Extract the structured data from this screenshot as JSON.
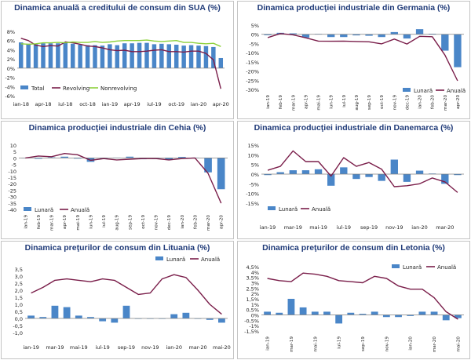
{
  "colors": {
    "bar": "#4a86c8",
    "line": "#7a1e4a",
    "line_green": "#8ed13c",
    "title": "#1f3a78",
    "zero": "#808080",
    "text": "#222222"
  },
  "chart_data": [
    {
      "id": "sua",
      "type": "bar+line",
      "title": "Dinamica anuală a creditului de consum din SUA (%)",
      "ylim": [
        -6,
        8
      ],
      "yticks": [
        -6,
        -4,
        -2,
        0,
        2,
        4,
        6,
        8
      ],
      "ytick_labels": [
        "-6%",
        "-4%",
        "-2%",
        "0%",
        "2%",
        "4%",
        "6%",
        "8%"
      ],
      "xlabels": [
        "ian-18",
        "apr-18",
        "iul-18",
        "oct-18",
        "ian-19",
        "apr-19",
        "iul-19",
        "oct-19",
        "ian-20",
        "apr-20"
      ],
      "xlabel_idx": [
        0,
        3,
        6,
        9,
        12,
        15,
        18,
        21,
        24,
        27
      ],
      "bar_series": {
        "name": "Total",
        "values": [
          5.6,
          5.3,
          5.2,
          5.4,
          5.4,
          5.4,
          5.5,
          5.3,
          5.1,
          5.0,
          5.0,
          4.9,
          5.2,
          5.0,
          5.4,
          5.4,
          5.5,
          5.5,
          5.2,
          5.3,
          5.2,
          5.1,
          4.9,
          5.0,
          4.9,
          4.8,
          4.6,
          2.2
        ]
      },
      "line_series": [
        {
          "name": "Revolving",
          "color_key": "line",
          "values": [
            6.5,
            6.0,
            5.0,
            4.7,
            4.9,
            4.8,
            5.7,
            5.5,
            5.2,
            4.8,
            4.7,
            4.4,
            4.0,
            3.8,
            3.9,
            3.6,
            3.6,
            3.7,
            3.9,
            4.0,
            3.6,
            3.6,
            3.5,
            3.7,
            3.7,
            3.2,
            1.8,
            -4.5
          ]
        },
        {
          "name": "Nonrevolving",
          "color_key": "line_green",
          "values": [
            5.3,
            5.2,
            5.3,
            5.5,
            5.5,
            5.6,
            5.5,
            5.7,
            5.6,
            5.6,
            5.8,
            5.6,
            5.7,
            5.9,
            6.0,
            6.0,
            6.0,
            6.1,
            5.9,
            5.8,
            5.9,
            6.0,
            5.6,
            5.6,
            5.4,
            5.3,
            5.4,
            4.7
          ]
        }
      ],
      "legend": [
        "Total",
        "Revolving",
        "Nonrevolving"
      ],
      "legend_position": "bottom"
    },
    {
      "id": "germania",
      "type": "bar+line",
      "title": "Dinamica producţiei industriale din Germania (%)",
      "ylim": [
        -30,
        5
      ],
      "yticks": [
        -30,
        -25,
        -20,
        -15,
        -10,
        -5,
        0,
        5
      ],
      "ytick_labels": [
        "-30%",
        "-25%",
        "-20%",
        "-15%",
        "-10%",
        "-5%",
        "0%",
        "5%"
      ],
      "xlabels": [
        "ian-19",
        "feb-19",
        "mar-19",
        "apr-19",
        "mai-19",
        "iun-19",
        "iul-19",
        "aug-19",
        "sep-19",
        "oct-19",
        "nov-19",
        "dec-19",
        "ian-20",
        "feb-20",
        "mar-20",
        "apr-20"
      ],
      "xlabel_idx": [
        0,
        1,
        2,
        3,
        4,
        5,
        6,
        7,
        8,
        9,
        10,
        11,
        12,
        13,
        14,
        15
      ],
      "bar_series": {
        "name": "Lunară",
        "values": [
          -0.5,
          0.8,
          0.5,
          -1.8,
          0.2,
          -1.5,
          -1.5,
          -0.6,
          -0.8,
          -1.5,
          1.2,
          -2.3,
          2.8,
          0.3,
          -8.9,
          -17.9
        ]
      },
      "line_series": [
        {
          "name": "Anuală",
          "color_key": "line",
          "values": [
            -1.8,
            0.4,
            -0.3,
            -1.9,
            -3.7,
            -3.8,
            -3.7,
            -3.9,
            -4.1,
            -5.2,
            -2.6,
            -5.3,
            -1.1,
            -1.3,
            -11.3,
            -25.3
          ]
        }
      ],
      "legend": [
        "Lunară",
        "Anuală"
      ],
      "legend_position": "bottom-right"
    },
    {
      "id": "cehia",
      "type": "bar+line",
      "title": "Dinamica producţiei industriale din Cehia (%)",
      "ylim": [
        -40,
        10
      ],
      "yticks": [
        -40,
        -35,
        -30,
        -25,
        -20,
        -15,
        -10,
        -5,
        0,
        5,
        10
      ],
      "ytick_labels": [
        "-40",
        "-35",
        "-30",
        "-25",
        "-20",
        "-15",
        "-10",
        "-5",
        "0",
        "5",
        "10"
      ],
      "xlabels": [
        "ian-19",
        "feb-19",
        "mar-19",
        "apr-19",
        "mai-19",
        "iun-19",
        "iul-19",
        "aug-19",
        "sep-19",
        "oct-19",
        "nov-19",
        "dec-19",
        "ian-20",
        "feb-20",
        "mar-20",
        "apr-20"
      ],
      "xlabel_idx": [
        0,
        1,
        2,
        3,
        4,
        5,
        6,
        7,
        8,
        9,
        10,
        11,
        12,
        13,
        14,
        15
      ],
      "bar_series": {
        "name": "Lunară",
        "values": [
          0.2,
          -0.6,
          0.5,
          1.0,
          -0.5,
          -3.0,
          -0.4,
          0.3,
          1.0,
          -1.0,
          -0.8,
          -1.5,
          0.8,
          0.3,
          -11.2,
          -24.3
        ]
      },
      "line_series": [
        {
          "name": "Anuală",
          "color_key": "line",
          "values": [
            0.0,
            1.5,
            1.0,
            3.5,
            2.5,
            -1.8,
            -0.5,
            -1.5,
            -1.0,
            -0.5,
            -0.5,
            -1.5,
            -0.5,
            0.0,
            -12.0,
            -35.2
          ]
        }
      ],
      "legend": [
        "Lunară",
        "Anuală"
      ],
      "legend_position": "bottom-left"
    },
    {
      "id": "danemarca",
      "type": "bar+line",
      "title": "Dinamica producţiei industriale din Danemarca (%)",
      "ylim": [
        -15,
        15
      ],
      "yticks": [
        -15,
        -10,
        -5,
        0,
        5,
        10,
        15
      ],
      "ytick_labels": [
        "-15%",
        "-10%",
        "-5%",
        "0%",
        "5%",
        "10%",
        "15%"
      ],
      "xlabels": [
        "ian-19",
        "mar-19",
        "mai-19",
        "iul-19",
        "sep-19",
        "nov-19",
        "ian-20",
        "mar-20"
      ],
      "xlabel_idx": [
        0,
        2,
        4,
        6,
        8,
        10,
        12,
        14
      ],
      "bar_series": {
        "name": "Lunară",
        "values": [
          -0.5,
          1.0,
          2.0,
          2.0,
          2.5,
          -6.0,
          3.5,
          -2.5,
          -1.5,
          -3.5,
          7.5,
          -4.0,
          1.8,
          0.3,
          -5.0,
          -0.5
        ]
      },
      "line_series": [
        {
          "name": "Anuală",
          "color_key": "line",
          "values": [
            2.0,
            4.0,
            12.0,
            6.5,
            6.5,
            -1.0,
            8.5,
            4.0,
            6.0,
            2.5,
            -6.5,
            -6.0,
            -5.0,
            -2.0,
            -4.0,
            -9.5
          ]
        }
      ],
      "legend": [
        "Lunară",
        "Anuală"
      ],
      "legend_position": "bottom"
    },
    {
      "id": "lituania",
      "type": "bar+line",
      "title": "Dinamica preţurilor de consum din Lituania (%)",
      "ylim": [
        -1.0,
        3.5
      ],
      "yticks": [
        -1.0,
        -0.5,
        0.0,
        0.5,
        1.0,
        1.5,
        2.0,
        2.5,
        3.0,
        3.5
      ],
      "ytick_labels": [
        "-1,0",
        "-0,5",
        "0,0",
        "0,5",
        "1,0",
        "1,5",
        "2,0",
        "2,5",
        "3,0",
        "3,5"
      ],
      "xlabels": [
        "ian-19",
        "mar-19",
        "mai-19",
        "iul-19",
        "sep-19",
        "nov-19",
        "ian-20",
        "mar-20",
        "mai-20"
      ],
      "xlabel_idx": [
        0,
        2,
        4,
        6,
        8,
        10,
        12,
        14,
        16
      ],
      "bar_series": {
        "name": "Lunară",
        "values": [
          0.2,
          0.1,
          0.9,
          0.8,
          0.2,
          0.1,
          -0.2,
          -0.3,
          0.9,
          0.0,
          0.0,
          0.0,
          0.3,
          0.4,
          0.0,
          -0.1,
          -0.3
        ]
      },
      "line_series": [
        {
          "name": "Anuală",
          "color_key": "line",
          "values": [
            1.8,
            2.2,
            2.7,
            2.8,
            2.7,
            2.6,
            2.8,
            2.7,
            2.2,
            1.7,
            1.8,
            2.8,
            3.1,
            2.9,
            2.0,
            1.0,
            0.3
          ]
        }
      ],
      "legend": [
        "Lunară",
        "Anuală"
      ],
      "legend_position": "top-right"
    },
    {
      "id": "letonia",
      "type": "bar+line",
      "title": "Dinamica preţurilor de consum din Letonia (%)",
      "ylim": [
        -1.5,
        4.5
      ],
      "yticks": [
        -1.5,
        -1.0,
        -0.5,
        0.0,
        0.5,
        1.0,
        1.5,
        2.0,
        2.5,
        3.0,
        3.5,
        4.0,
        4.5
      ],
      "ytick_labels": [
        "-1,5%",
        "-1%",
        "-0,5%",
        "0%",
        "0,5%",
        "1%",
        "1,5%",
        "2%",
        "2,5%",
        "3%",
        "3,5%",
        "4%",
        "4,5%"
      ],
      "xlabels": [
        "ian-19",
        "mar-19",
        "mai-19",
        "iul-19",
        "sep-19",
        "nov-19",
        "ian-20",
        "mar-20",
        "mai-20"
      ],
      "xlabel_idx": [
        0,
        2,
        4,
        6,
        8,
        10,
        12,
        14,
        16
      ],
      "bar_series": {
        "name": "Lunară",
        "values": [
          0.3,
          0.2,
          1.5,
          0.7,
          0.3,
          0.3,
          -0.8,
          0.2,
          0.1,
          0.3,
          -0.2,
          -0.2,
          -0.1,
          0.3,
          0.3,
          -0.5,
          -0.3
        ]
      },
      "line_series": [
        {
          "name": "Anuală",
          "color_key": "line",
          "values": [
            3.4,
            3.2,
            3.1,
            3.9,
            3.8,
            3.6,
            3.2,
            3.1,
            3.0,
            3.6,
            3.4,
            2.7,
            2.4,
            2.4,
            1.6,
            0.3,
            -0.4
          ]
        }
      ],
      "legend": [
        "Lunară",
        "Anuală"
      ],
      "legend_position": "top-right"
    }
  ]
}
